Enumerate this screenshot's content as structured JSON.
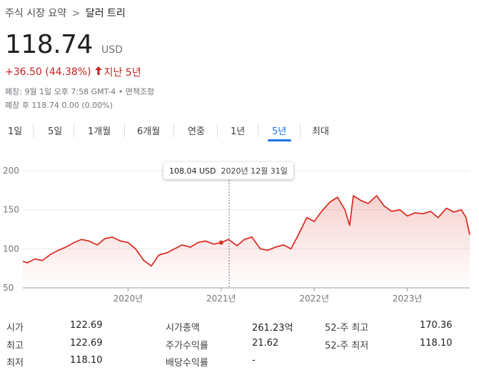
{
  "breadcrumb": {
    "root": "주식 시장 요약",
    "separator": ">",
    "current": "달러 트리"
  },
  "quote": {
    "price": "118.74",
    "currency": "USD",
    "change": "+36.50 (44.38%)",
    "direction_icon": "arrow-up-icon",
    "period": "지난 5년"
  },
  "meta": {
    "close_info": "폐장: 9월 1일 오후 7:58 GMT-4 • 면책조항",
    "after_hours": "폐장 후 118.74 0.00 (0.00%)"
  },
  "tabs": [
    {
      "label": "1일",
      "active": false
    },
    {
      "label": "5일",
      "active": false
    },
    {
      "label": "1개월",
      "active": false
    },
    {
      "label": "6개월",
      "active": false
    },
    {
      "label": "연중",
      "active": false
    },
    {
      "label": "1년",
      "active": false
    },
    {
      "label": "5년",
      "active": true
    },
    {
      "label": "최대",
      "active": false
    }
  ],
  "tooltip": {
    "value": "108.04 USD",
    "date": "2020년 12월 31일"
  },
  "chart_data": {
    "type": "area",
    "y_ticks": [
      "200",
      "150",
      "100",
      "50"
    ],
    "ylim": [
      50,
      200
    ],
    "x_ticks": [
      "2020년",
      "2021년",
      "2022년",
      "2023년"
    ],
    "x_tick_values": [
      2020.0,
      2021.0,
      2022.0,
      2023.0
    ],
    "xlim": [
      2018.87,
      2023.67
    ],
    "series": [
      {
        "x": [
          2018.87,
          2018.92,
          2019.0,
          2019.08,
          2019.17,
          2019.25,
          2019.33,
          2019.42,
          2019.5,
          2019.58,
          2019.67,
          2019.75,
          2019.83,
          2019.92,
          2020.0,
          2020.08,
          2020.17,
          2020.25,
          2020.33,
          2020.42,
          2020.5,
          2020.58,
          2020.67,
          2020.75,
          2020.83,
          2020.92,
          2021.0,
          2021.08,
          2021.17,
          2021.25,
          2021.33,
          2021.42,
          2021.5,
          2021.58,
          2021.67,
          2021.75,
          2021.83,
          2021.92,
          2022.0,
          2022.08,
          2022.17,
          2022.25,
          2022.33,
          2022.38,
          2022.42,
          2022.5,
          2022.58,
          2022.67,
          2022.75,
          2022.83,
          2022.92,
          2023.0,
          2023.08,
          2023.17,
          2023.25,
          2023.33,
          2023.42,
          2023.5,
          2023.58,
          2023.63,
          2023.67
        ],
        "values": [
          84,
          82,
          87,
          85,
          93,
          98,
          102,
          108,
          112,
          110,
          105,
          113,
          115,
          110,
          108,
          100,
          85,
          78,
          92,
          95,
          100,
          105,
          102,
          108,
          110,
          106,
          108,
          112,
          104,
          112,
          115,
          100,
          98,
          102,
          105,
          100,
          118,
          140,
          135,
          148,
          160,
          166,
          150,
          130,
          168,
          162,
          158,
          168,
          155,
          148,
          150,
          142,
          146,
          145,
          148,
          140,
          152,
          147,
          150,
          140,
          118
        ]
      }
    ]
  },
  "stats": {
    "col1": [
      {
        "label": "시가",
        "value": "122.69"
      },
      {
        "label": "최고",
        "value": "122.69"
      },
      {
        "label": "최저",
        "value": "118.10"
      }
    ],
    "col2": [
      {
        "label": "시가총액",
        "value": "261.23억"
      },
      {
        "label": "주가수익률",
        "value": "21.62"
      },
      {
        "label": "배당수익률",
        "value": "-"
      }
    ],
    "col3": [
      {
        "label": "52-주 최고",
        "value": "170.36"
      },
      {
        "label": "52-주 최저",
        "value": "118.10"
      }
    ]
  },
  "colors": {
    "accent": "#1a73e8",
    "negative": "#c5221f",
    "line": "#d93025"
  }
}
